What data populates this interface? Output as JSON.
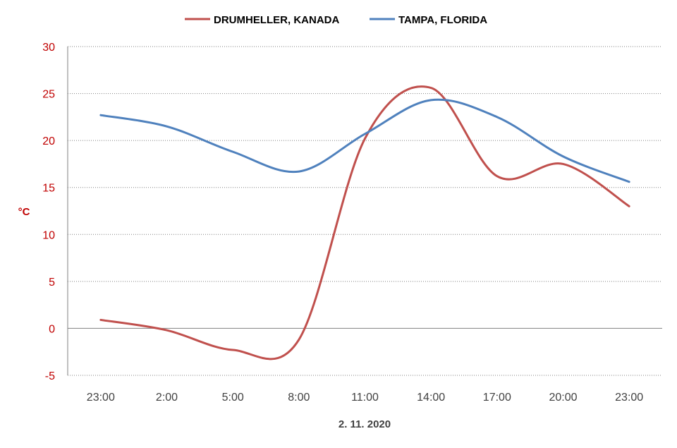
{
  "chart_data": {
    "type": "line",
    "title": "",
    "xlabel": "2. 11. 2020",
    "ylabel": "°C",
    "categories": [
      "23:00",
      "2:00",
      "5:00",
      "8:00",
      "11:00",
      "14:00",
      "17:00",
      "20:00",
      "23:00"
    ],
    "ylim": [
      -5,
      30
    ],
    "yticks": [
      -5,
      0,
      5,
      10,
      15,
      20,
      25,
      30
    ],
    "grid": true,
    "legend_position": "top",
    "series": [
      {
        "name": "DRUMHELLER, KANADA",
        "color": "#c0504d",
        "values": [
          0.9,
          -0.2,
          -2.3,
          -1.2,
          20.2,
          25.6,
          16.2,
          17.5,
          13.0
        ]
      },
      {
        "name": "TAMPA, FLORIDA",
        "color": "#4f81bd",
        "values": [
          22.7,
          21.5,
          18.8,
          16.7,
          20.7,
          24.3,
          22.5,
          18.3,
          15.6
        ]
      }
    ]
  }
}
